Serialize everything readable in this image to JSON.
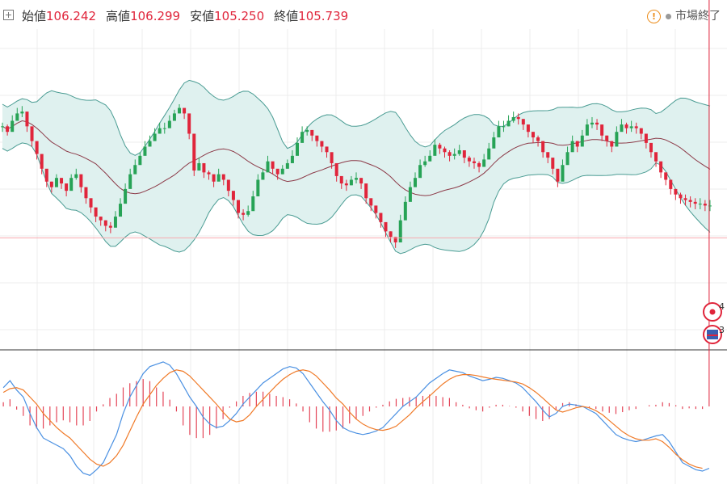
{
  "header": {
    "open_label": "始値",
    "open_value": "106.242",
    "high_label": "高値",
    "high_value": "106.299",
    "low_label": "安値",
    "low_value": "105.250",
    "close_label": "終値",
    "close_value": "105.739",
    "market_status": "市場終了"
  },
  "colors": {
    "up": "#27a356",
    "down": "#e0253b",
    "band_fill": "#dff1ef",
    "band_line": "#4a9c93",
    "middle_band": "#8c3a48",
    "macd_line": "#4a90e2",
    "signal_line": "#f07a28",
    "price_line": "#f8a8ae"
  },
  "markers": {
    "event_1": "4",
    "event_2": "3"
  },
  "chart_data": [
    {
      "type": "candlestick",
      "title": "",
      "xlabel": "",
      "ylabel": "",
      "ylim": [
        0,
        100
      ],
      "grid": true,
      "indicators": [
        "bollinger_bands",
        "moving_average"
      ],
      "close": [
        63,
        60,
        66,
        70,
        71,
        63,
        55,
        48,
        40,
        33,
        30,
        35,
        32,
        28,
        35,
        37,
        30,
        24,
        19,
        14,
        12,
        9,
        8,
        14,
        21,
        29,
        37,
        42,
        47,
        52,
        55,
        59,
        62,
        62,
        66,
        70,
        73,
        70,
        59,
        39,
        43,
        38,
        37,
        33,
        37,
        34,
        28,
        23,
        16,
        15,
        17,
        25,
        34,
        38,
        44,
        40,
        37,
        40,
        43,
        47,
        54,
        60,
        61,
        58,
        55,
        52,
        49,
        43,
        36,
        32,
        31,
        34,
        35,
        32,
        24,
        20,
        16,
        11,
        6,
        3,
        0,
        12,
        22,
        30,
        35,
        42,
        44,
        47,
        53,
        51,
        49,
        47,
        48,
        50,
        46,
        44,
        43,
        41,
        45,
        51,
        57,
        63,
        63,
        66,
        68,
        67,
        64,
        60,
        57,
        55,
        49,
        46,
        40,
        33,
        42,
        49,
        55,
        52,
        58,
        64,
        65,
        64,
        58,
        55,
        52,
        60,
        64,
        62,
        63,
        62,
        59,
        54,
        49,
        44,
        38,
        34,
        29,
        26,
        24,
        23,
        22,
        21,
        21,
        20,
        20
      ],
      "high": [
        65,
        64,
        69,
        73,
        74,
        67,
        58,
        50,
        43,
        36,
        33,
        37,
        35,
        31,
        37,
        40,
        32,
        27,
        21,
        16,
        14,
        12,
        11,
        17,
        24,
        32,
        40,
        45,
        49,
        55,
        58,
        62,
        65,
        65,
        69,
        72,
        75,
        72,
        61,
        42,
        46,
        41,
        39,
        35,
        40,
        37,
        31,
        26,
        19,
        18,
        20,
        28,
        37,
        40,
        47,
        43,
        39,
        42,
        45,
        50,
        57,
        63,
        63,
        61,
        57,
        55,
        52,
        46,
        39,
        35,
        34,
        36,
        38,
        35,
        27,
        23,
        19,
        14,
        9,
        6,
        3,
        15,
        25,
        33,
        38,
        45,
        47,
        50,
        56,
        54,
        52,
        50,
        51,
        53,
        49,
        47,
        46,
        44,
        48,
        54,
        60,
        66,
        66,
        69,
        71,
        70,
        67,
        63,
        60,
        58,
        52,
        49,
        43,
        36,
        45,
        52,
        58,
        55,
        61,
        67,
        68,
        67,
        61,
        58,
        55,
        63,
        67,
        65,
        66,
        65,
        62,
        57,
        52,
        47,
        41,
        37,
        32,
        29,
        27,
        26,
        25,
        24,
        24,
        23,
        23
      ],
      "low": [
        60,
        58,
        63,
        67,
        68,
        60,
        52,
        45,
        37,
        30,
        27,
        32,
        29,
        25,
        32,
        34,
        27,
        21,
        16,
        11,
        9,
        6,
        5,
        11,
        18,
        26,
        34,
        39,
        44,
        49,
        52,
        56,
        59,
        59,
        63,
        67,
        70,
        67,
        56,
        36,
        40,
        35,
        34,
        30,
        34,
        31,
        25,
        20,
        13,
        12,
        14,
        22,
        31,
        35,
        41,
        37,
        34,
        37,
        40,
        44,
        51,
        57,
        58,
        55,
        52,
        49,
        46,
        40,
        33,
        29,
        28,
        31,
        32,
        29,
        21,
        17,
        13,
        8,
        3,
        0,
        -3,
        9,
        19,
        27,
        32,
        39,
        41,
        44,
        50,
        48,
        46,
        44,
        45,
        47,
        43,
        41,
        40,
        38,
        42,
        48,
        54,
        60,
        60,
        63,
        65,
        64,
        61,
        57,
        54,
        52,
        46,
        43,
        37,
        30,
        39,
        46,
        52,
        49,
        55,
        61,
        62,
        61,
        55,
        52,
        49,
        57,
        61,
        59,
        60,
        59,
        56,
        51,
        46,
        41,
        35,
        31,
        26,
        23,
        21,
        20,
        19,
        18,
        18,
        17,
        17
      ],
      "last_price": 105.739
    },
    {
      "type": "line",
      "title": "",
      "xlabel": "",
      "ylabel": "",
      "indicator": "MACD",
      "ylim": [
        -100,
        100
      ],
      "series": [
        {
          "values": [
            40,
            55,
            35,
            20,
            -10,
            -30,
            -45,
            -50,
            -55,
            -60,
            -70,
            -85,
            -95,
            -98,
            -90,
            -80,
            -60,
            -40,
            -10,
            20,
            45,
            70,
            85,
            90,
            95,
            88,
            70,
            45,
            20,
            0,
            -15,
            -25,
            -30,
            -28,
            -20,
            -10,
            5,
            20,
            35,
            50,
            60,
            70,
            80,
            85,
            82,
            70,
            50,
            30,
            10,
            -5,
            -20,
            -30,
            -35,
            -38,
            -40,
            -38,
            -35,
            -30,
            -20,
            -10,
            0,
            10,
            20,
            35,
            50,
            60,
            70,
            78,
            75,
            72,
            65,
            60,
            55,
            58,
            62,
            60,
            55,
            50,
            40,
            25,
            10,
            -5,
            -15,
            -10,
            0,
            5,
            3,
            0,
            -5,
            -10,
            -20,
            -30,
            -40,
            -45,
            -48,
            -50,
            -48,
            -45,
            -42,
            -40,
            -50,
            -65,
            -80,
            -85,
            -90,
            -92,
            -88
          ]
        },
        {
          "values": [
            30,
            38,
            40,
            35,
            20,
            5,
            -10,
            -20,
            -30,
            -38,
            -45,
            -55,
            -65,
            -75,
            -82,
            -85,
            -80,
            -70,
            -55,
            -35,
            -15,
            5,
            25,
            45,
            60,
            72,
            78,
            75,
            65,
            50,
            35,
            20,
            5,
            -8,
            -18,
            -22,
            -20,
            -12,
            0,
            15,
            30,
            45,
            58,
            68,
            75,
            78,
            75,
            65,
            50,
            35,
            18,
            5,
            -8,
            -18,
            -25,
            -30,
            -33,
            -34,
            -32,
            -28,
            -20,
            -12,
            -2,
            10,
            22,
            35,
            48,
            58,
            65,
            68,
            68,
            66,
            63,
            60,
            58,
            56,
            54,
            52,
            48,
            40,
            30,
            18,
            5,
            -5,
            -8,
            -5,
            -2,
            0,
            -2,
            -6,
            -12,
            -20,
            -28,
            -36,
            -42,
            -46,
            -48,
            -48,
            -46,
            -50,
            -58,
            -68,
            -76,
            -82,
            -86,
            -88
          ]
        }
      ]
    }
  ]
}
